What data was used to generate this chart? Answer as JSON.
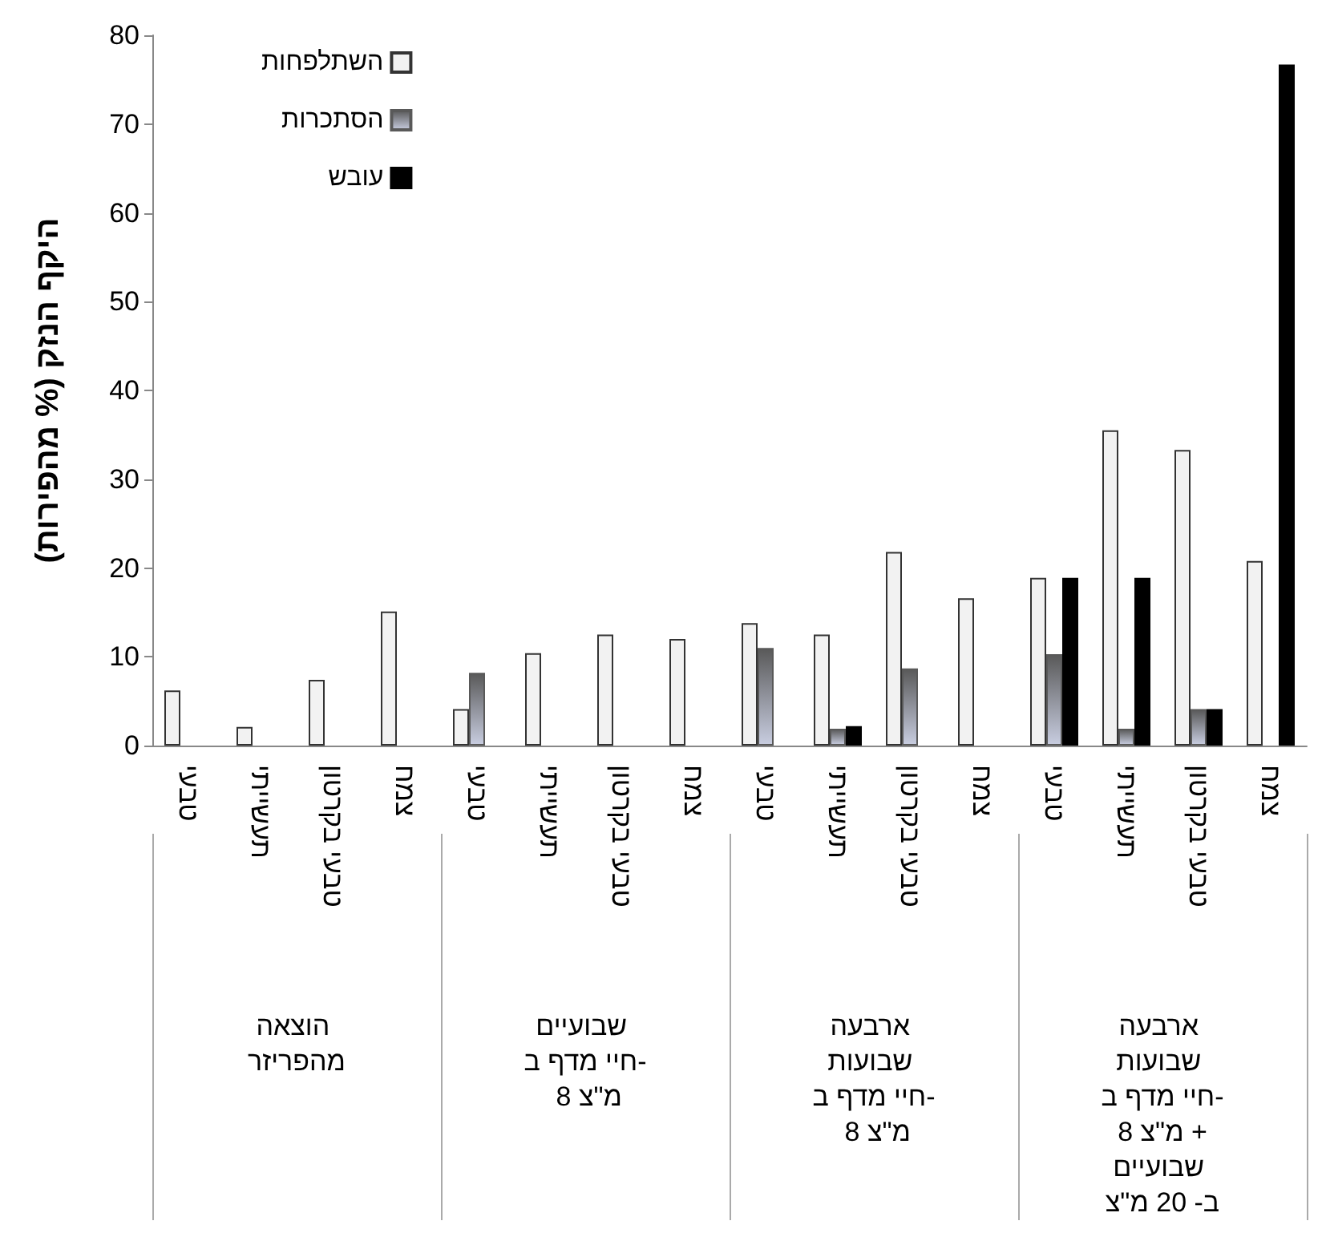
{
  "chart_data": {
    "type": "bar",
    "ylabel": "היקף הנזק (% מהפירות)",
    "categories": [
      "טבעי",
      "תעשייתי",
      "טבעי בקרטון",
      "צמח",
      "טבעי",
      "תעשייתי",
      "טבעי בקרטון",
      "צמח",
      "טבעי",
      "תעשייתי",
      "טבעי בקרטון",
      "צמח",
      "טבעי",
      "תעשייתי",
      "טבעי בקרטון",
      "צמח"
    ],
    "series": [
      {
        "name": "השתלפחות",
        "color": "#f2f2f2",
        "values": [
          6.2,
          2.1,
          7.4,
          15.1,
          4.1,
          10.4,
          12.5,
          12.0,
          13.8,
          12.5,
          21.8,
          16.6,
          18.9,
          35.5,
          33.3,
          20.8
        ]
      },
      {
        "name": "הסתכרות",
        "color": "#595959",
        "values": [
          null,
          null,
          null,
          null,
          8.2,
          null,
          null,
          null,
          11.0,
          1.9,
          8.7,
          null,
          10.3,
          1.9,
          4.1,
          null
        ]
      },
      {
        "name": "עובש",
        "color": "#000000",
        "values": [
          null,
          null,
          null,
          null,
          null,
          null,
          null,
          null,
          null,
          2.2,
          null,
          null,
          18.9,
          18.9,
          4.1,
          76.7
        ]
      }
    ],
    "annotations": [
      "הוצאה מהפריזר",
      "שבועיים חיי מדף ב- 8 מ\"צ",
      "ארבעה שבועות חיי מדף ב- 8 מ\"צ",
      "ארבעה שבועות חיי מדף ב- 8 מ\"צ + שבועיים ב- 20 מ\"צ"
    ],
    "ylim": [
      0,
      80
    ],
    "yticks": [
      0,
      10,
      20,
      30,
      40,
      50,
      60,
      70,
      80
    ],
    "grid": false,
    "legend": "top left"
  }
}
